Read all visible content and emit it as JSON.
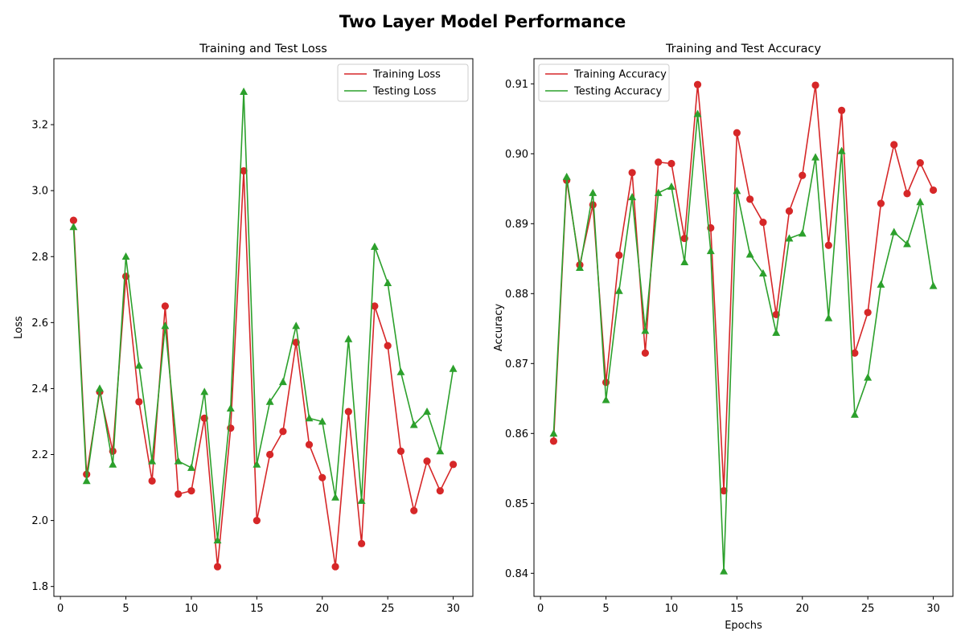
{
  "suptitle": "Two Layer Model Performance",
  "chart_data": [
    {
      "type": "line",
      "title": "Training and Test Loss",
      "xlabel": "",
      "ylabel": "Loss",
      "xlim": [
        -0.5,
        31.5
      ],
      "ylim": [
        1.77,
        3.4
      ],
      "xticks": [
        0,
        5,
        10,
        15,
        20,
        25,
        30
      ],
      "yticks": [
        1.8,
        2.0,
        2.2,
        2.4,
        2.6,
        2.8,
        3.0,
        3.2
      ],
      "ytick_labels": [
        "1.8",
        "2.0",
        "2.2",
        "2.4",
        "2.6",
        "2.8",
        "3.0",
        "3.2"
      ],
      "legend_position": "upper right",
      "x": [
        1,
        2,
        3,
        4,
        5,
        6,
        7,
        8,
        9,
        10,
        11,
        12,
        13,
        14,
        15,
        16,
        17,
        18,
        19,
        20,
        21,
        22,
        23,
        24,
        25,
        26,
        27,
        28,
        29,
        30
      ],
      "series": [
        {
          "name": "Training Loss",
          "color": "#d62728",
          "marker": "circle",
          "values": [
            2.91,
            2.14,
            2.39,
            2.21,
            2.74,
            2.36,
            2.12,
            2.65,
            2.08,
            2.09,
            2.31,
            1.86,
            2.28,
            3.06,
            2.0,
            2.2,
            2.27,
            2.54,
            2.23,
            2.13,
            1.86,
            2.33,
            1.93,
            2.65,
            2.53,
            2.21,
            2.03,
            2.18,
            2.09,
            2.17
          ]
        },
        {
          "name": "Testing Loss",
          "color": "#2ca02c",
          "marker": "triangle",
          "values": [
            2.89,
            2.12,
            2.4,
            2.17,
            2.8,
            2.47,
            2.18,
            2.59,
            2.18,
            2.16,
            2.39,
            1.94,
            2.34,
            3.3,
            2.17,
            2.36,
            2.42,
            2.59,
            2.31,
            2.3,
            2.07,
            2.55,
            2.06,
            2.83,
            2.72,
            2.45,
            2.29,
            2.33,
            2.21,
            2.46
          ]
        }
      ]
    },
    {
      "type": "line",
      "title": "Training and Test Accuracy",
      "xlabel": "Epochs",
      "ylabel": "Accuracy",
      "xlim": [
        -0.5,
        31.5
      ],
      "ylim": [
        0.8367,
        0.9136
      ],
      "xticks": [
        0,
        5,
        10,
        15,
        20,
        25,
        30
      ],
      "yticks": [
        0.84,
        0.85,
        0.86,
        0.87,
        0.88,
        0.89,
        0.9,
        0.91
      ],
      "ytick_labels": [
        "0.84",
        "0.85",
        "0.86",
        "0.87",
        "0.88",
        "0.89",
        "0.90",
        "0.91"
      ],
      "legend_position": "upper left",
      "x": [
        1,
        2,
        3,
        4,
        5,
        6,
        7,
        8,
        9,
        10,
        11,
        12,
        13,
        14,
        15,
        16,
        17,
        18,
        19,
        20,
        21,
        22,
        23,
        24,
        25,
        26,
        27,
        28,
        29,
        30
      ],
      "series": [
        {
          "name": "Training Accuracy",
          "color": "#d62728",
          "marker": "circle",
          "values": [
            0.8589,
            0.8962,
            0.8841,
            0.8927,
            0.8673,
            0.8855,
            0.8973,
            0.8715,
            0.8988,
            0.8986,
            0.8879,
            0.9099,
            0.8894,
            0.8518,
            0.903,
            0.8935,
            0.8902,
            0.877,
            0.8918,
            0.8969,
            0.9098,
            0.8869,
            0.9062,
            0.8715,
            0.8773,
            0.8929,
            0.9013,
            0.8943,
            0.8987,
            0.8948
          ]
        },
        {
          "name": "Testing Accuracy",
          "color": "#2ca02c",
          "marker": "triangle",
          "values": [
            0.86,
            0.8967,
            0.8837,
            0.8944,
            0.8648,
            0.8804,
            0.8938,
            0.8747,
            0.8944,
            0.8953,
            0.8845,
            0.9057,
            0.8861,
            0.8403,
            0.8947,
            0.8856,
            0.8829,
            0.8744,
            0.8879,
            0.8886,
            0.8995,
            0.8765,
            0.9004,
            0.8627,
            0.868,
            0.8813,
            0.8888,
            0.8871,
            0.8931,
            0.8811
          ]
        }
      ]
    }
  ]
}
